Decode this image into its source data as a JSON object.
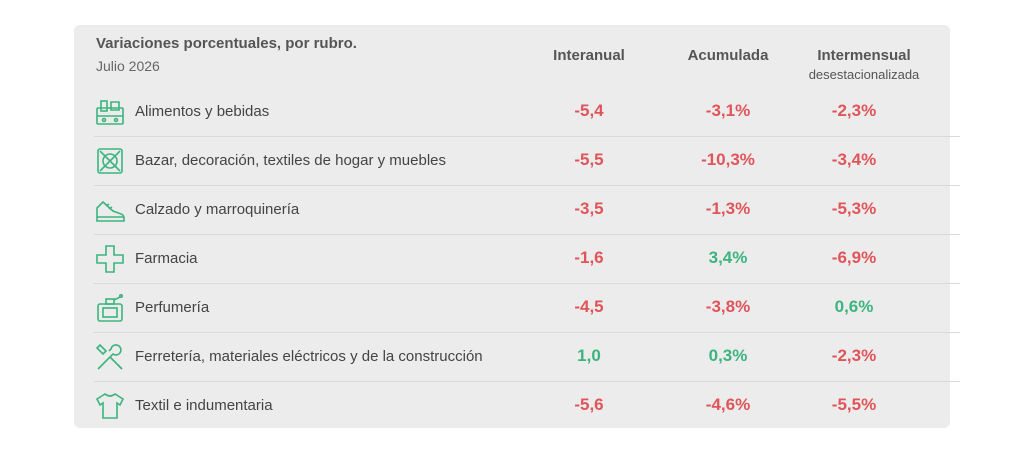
{
  "header": {
    "title": "Variaciones porcentuales, por rubro.",
    "subtitle": "Julio 2026",
    "col1": "Interanual",
    "col2": "Acumulada",
    "col3": "Intermensual",
    "col3_sub": "desestacionalizada"
  },
  "colors": {
    "negative": "#e0555a",
    "positive": "#3cb47e",
    "icon": "#3cb47e"
  },
  "rows": [
    {
      "icon": "grocery-icon",
      "label": "Alimentos y bebidas",
      "interanual": "-5,4",
      "acumulada": "-3,1%",
      "intermensual": "-2,3%"
    },
    {
      "icon": "home-goods-icon",
      "label": "Bazar, decoración, textiles de hogar y muebles",
      "interanual": "-5,5",
      "acumulada": "-10,3%",
      "intermensual": "-3,4%"
    },
    {
      "icon": "shoe-icon",
      "label": "Calzado y marroquinería",
      "interanual": "-3,5",
      "acumulada": "-1,3%",
      "intermensual": "-5,3%"
    },
    {
      "icon": "pharmacy-cross-icon",
      "label": "Farmacia",
      "interanual": "-1,6",
      "acumulada": "3,4%",
      "intermensual": "-6,9%"
    },
    {
      "icon": "perfume-icon",
      "label": "Perfumería",
      "interanual": "-4,5",
      "acumulada": "-3,8%",
      "intermensual": "0,6%"
    },
    {
      "icon": "tools-icon",
      "label": "Ferretería, materiales eléctricos y de la construcción",
      "interanual": "1,0",
      "acumulada": "0,3%",
      "intermensual": "-2,3%"
    },
    {
      "icon": "shirt-icon",
      "label": "Textil e indumentaria",
      "interanual": "-5,6",
      "acumulada": "-4,6%",
      "intermensual": "-5,5%"
    }
  ]
}
